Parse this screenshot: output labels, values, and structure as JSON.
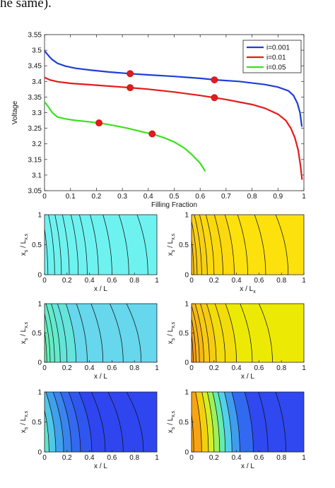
{
  "caption_fragment": "he same).",
  "chart_data": [
    {
      "type": "line",
      "xlabel": "Filling Fraction",
      "ylabel": "Voltage",
      "xlim": [
        0,
        1
      ],
      "ylim": [
        3.05,
        3.55
      ],
      "xticks": [
        0,
        0.1,
        0.2,
        0.3,
        0.4,
        0.5,
        0.6,
        0.7,
        0.8,
        0.9,
        1
      ],
      "xtick_labels": [
        "0",
        "0.1",
        "0.2",
        "0.3",
        "0.4",
        "0.5",
        "0.6",
        "0.7",
        "0.8",
        "0.9",
        "1"
      ],
      "yticks": [
        3.05,
        3.1,
        3.15,
        3.2,
        3.25,
        3.3,
        3.35,
        3.4,
        3.45,
        3.5,
        3.55
      ],
      "ytick_labels": [
        "3.05",
        "3.1",
        "3.15",
        "3.2",
        "3.25",
        "3.3",
        "3.35",
        "3.4",
        "3.45",
        "3.5",
        "3.55"
      ],
      "legend_position": "top-right",
      "grid": false,
      "series": [
        {
          "name": "i=0.001",
          "color": "#1f3fd6",
          "x": [
            0,
            0.01,
            0.02,
            0.03,
            0.05,
            0.08,
            0.12,
            0.18,
            0.25,
            0.33,
            0.4,
            0.5,
            0.6,
            0.66,
            0.75,
            0.85,
            0.9,
            0.94,
            0.96,
            0.975,
            0.985,
            0.992
          ],
          "y": [
            3.498,
            3.488,
            3.478,
            3.47,
            3.458,
            3.449,
            3.442,
            3.436,
            3.43,
            3.425,
            3.421,
            3.416,
            3.41,
            3.405,
            3.4,
            3.39,
            3.382,
            3.37,
            3.355,
            3.33,
            3.3,
            3.255
          ],
          "markers": [
            [
              0.33,
              3.425
            ],
            [
              0.655,
              3.405
            ]
          ]
        },
        {
          "name": "i=0.01",
          "color": "#e41a1c",
          "x": [
            0,
            0.02,
            0.05,
            0.1,
            0.2,
            0.3,
            0.33,
            0.4,
            0.5,
            0.6,
            0.655,
            0.7,
            0.8,
            0.85,
            0.9,
            0.93,
            0.95,
            0.965,
            0.978,
            0.987,
            0.993
          ],
          "y": [
            3.413,
            3.405,
            3.399,
            3.394,
            3.388,
            3.382,
            3.38,
            3.375,
            3.366,
            3.355,
            3.348,
            3.342,
            3.326,
            3.314,
            3.295,
            3.275,
            3.25,
            3.22,
            3.18,
            3.13,
            3.085
          ],
          "markers": [
            [
              0.33,
              3.38
            ],
            [
              0.655,
              3.348
            ]
          ]
        },
        {
          "name": "i=0.05",
          "color": "#3be11f",
          "x": [
            0,
            0.015,
            0.03,
            0.05,
            0.08,
            0.12,
            0.18,
            0.21,
            0.26,
            0.32,
            0.38,
            0.415,
            0.46,
            0.5,
            0.54,
            0.57,
            0.6,
            0.62
          ],
          "y": [
            3.335,
            3.318,
            3.3,
            3.286,
            3.28,
            3.275,
            3.27,
            3.267,
            3.26,
            3.25,
            3.238,
            3.232,
            3.22,
            3.206,
            3.186,
            3.164,
            3.138,
            3.112
          ],
          "markers": [
            [
              0.21,
              3.267
            ],
            [
              0.415,
              3.232
            ]
          ]
        }
      ]
    },
    {
      "type": "heatmap",
      "panel": "row1-left",
      "background": "#6ef2f0",
      "xlabel": "x / L",
      "ylabel": "x_s / L_x,s",
      "xlim": [
        0,
        1
      ],
      "ylim": [
        0,
        1
      ],
      "xtick_labels": [
        "0",
        "0.2",
        "0.4",
        "0.6",
        "0.8",
        "1"
      ],
      "ytick_labels": [
        "0",
        "0.5",
        "1"
      ],
      "contours_x_bottom": [
        0.03,
        0.09,
        0.15,
        0.22,
        0.3,
        0.38,
        0.48,
        0.6,
        0.75,
        0.92
      ],
      "contour_curvature": 0.05,
      "bands": []
    },
    {
      "type": "heatmap",
      "panel": "row1-right",
      "background": "#fce10c",
      "xlabel": "x / L_x",
      "ylabel": "x_s / L_x,s",
      "xlim": [
        0,
        1
      ],
      "ylim": [
        0,
        1
      ],
      "xtick_labels": [
        "0",
        "0.2",
        "0.4",
        "0.6",
        "0.8",
        "1"
      ],
      "ytick_labels": [
        "0",
        "0.5",
        "1"
      ],
      "contours_x_bottom": [
        0.02,
        0.05,
        0.09,
        0.14,
        0.2,
        0.28,
        0.38,
        0.5,
        0.66,
        0.86
      ],
      "contour_curvature": 0.06,
      "bands": [
        {
          "x0": 0,
          "x1": 0.05,
          "color": "#f5c218"
        },
        {
          "x0": 0.05,
          "x1": 0.14,
          "color": "#f8d012"
        },
        {
          "x0": 0.14,
          "x1": 0.38,
          "color": "#fbd90e"
        }
      ]
    },
    {
      "type": "heatmap",
      "panel": "row2-left",
      "background": "#66d7ec",
      "xlabel": "x / L",
      "ylabel": "x_s / L_x,s",
      "xlim": [
        0,
        1
      ],
      "ylim": [
        0,
        1
      ],
      "xtick_labels": [
        "0",
        "0.2",
        "0.4",
        "0.6",
        "0.8",
        "1"
      ],
      "ytick_labels": [
        "0",
        "0.5",
        "1"
      ],
      "contours_x_bottom": [
        0.02,
        0.05,
        0.09,
        0.14,
        0.2,
        0.28,
        0.38,
        0.52,
        0.7,
        0.86
      ],
      "contour_curvature": 0.07,
      "bands": [
        {
          "x0": 0,
          "x1": 0.05,
          "color": "#62f0b3"
        },
        {
          "x0": 0.05,
          "x1": 0.14,
          "color": "#63ebca"
        },
        {
          "x0": 0.14,
          "x1": 0.28,
          "color": "#64e4db"
        }
      ]
    },
    {
      "type": "heatmap",
      "panel": "row2-right",
      "background": "#ecea05",
      "xlabel": "x / L",
      "ylabel": "x_s / L_x,s",
      "xlim": [
        0,
        1
      ],
      "ylim": [
        0,
        1
      ],
      "xtick_labels": [
        "0",
        "0.2",
        "0.4",
        "0.6",
        "0.8",
        "1"
      ],
      "ytick_labels": [
        "0",
        "0.5",
        "1"
      ],
      "contours_x_bottom": [
        0.015,
        0.04,
        0.07,
        0.11,
        0.16,
        0.22,
        0.3,
        0.4,
        0.54,
        0.72
      ],
      "contour_curvature": 0.07,
      "bands": [
        {
          "x0": 0,
          "x1": 0.04,
          "color": "#f39a1a"
        },
        {
          "x0": 0.04,
          "x1": 0.11,
          "color": "#f6b616"
        },
        {
          "x0": 0.11,
          "x1": 0.22,
          "color": "#f7cb12"
        },
        {
          "x0": 0.22,
          "x1": 0.4,
          "color": "#f2dc0b"
        }
      ]
    },
    {
      "type": "heatmap",
      "panel": "row3-left",
      "background": "#2f45f0",
      "xlabel": "x / L",
      "ylabel": "x_s / L_x,s",
      "xlim": [
        0,
        1
      ],
      "ylim": [
        0,
        1
      ],
      "xtick_labels": [
        "0",
        "0.2",
        "0.4",
        "0.6",
        "0.8",
        "1"
      ],
      "ytick_labels": [
        "0",
        "0.5",
        "1"
      ],
      "contours_x_bottom": [
        0.04,
        0.1,
        0.17,
        0.24,
        0.32,
        0.42,
        0.54,
        0.7,
        0.88
      ],
      "contour_curvature": 0.08,
      "bands": [
        {
          "x0": 0,
          "x1": 0.04,
          "color": "#5ee8c9"
        },
        {
          "x0": 0.04,
          "x1": 0.1,
          "color": "#4fc8e8"
        },
        {
          "x0": 0.1,
          "x1": 0.17,
          "color": "#3fa0ec"
        },
        {
          "x0": 0.17,
          "x1": 0.24,
          "color": "#3a84ee"
        },
        {
          "x0": 0.24,
          "x1": 0.32,
          "color": "#3369f0"
        },
        {
          "x0": 0.32,
          "x1": 0.42,
          "color": "#3056f0"
        }
      ]
    },
    {
      "type": "heatmap",
      "panel": "row3-right",
      "background": "#2f48f0",
      "xlabel": "x / L",
      "ylabel": "x_s / L_x,s",
      "xlim": [
        0,
        1
      ],
      "ylim": [
        0,
        1
      ],
      "xtick_labels": [
        "0",
        "0.2",
        "0.4",
        "0.6",
        "0.8",
        "1"
      ],
      "ytick_labels": [
        "0",
        "0.5",
        "1"
      ],
      "contours_x_bottom": [
        0.02,
        0.09,
        0.15,
        0.2,
        0.25,
        0.3,
        0.36,
        0.43,
        0.55,
        0.68,
        0.84
      ],
      "contour_curvature": 0.05,
      "bands": [
        {
          "x0": 0,
          "x1": 0.09,
          "color": "#f7a413"
        },
        {
          "x0": 0.09,
          "x1": 0.15,
          "color": "#f3d00d"
        },
        {
          "x0": 0.15,
          "x1": 0.2,
          "color": "#d7ee24"
        },
        {
          "x0": 0.2,
          "x1": 0.25,
          "color": "#9ff05a"
        },
        {
          "x0": 0.25,
          "x1": 0.3,
          "color": "#62ecb0"
        },
        {
          "x0": 0.3,
          "x1": 0.36,
          "color": "#53d0ea"
        },
        {
          "x0": 0.36,
          "x1": 0.43,
          "color": "#3f9cee"
        },
        {
          "x0": 0.43,
          "x1": 0.55,
          "color": "#3169f0"
        }
      ]
    }
  ]
}
